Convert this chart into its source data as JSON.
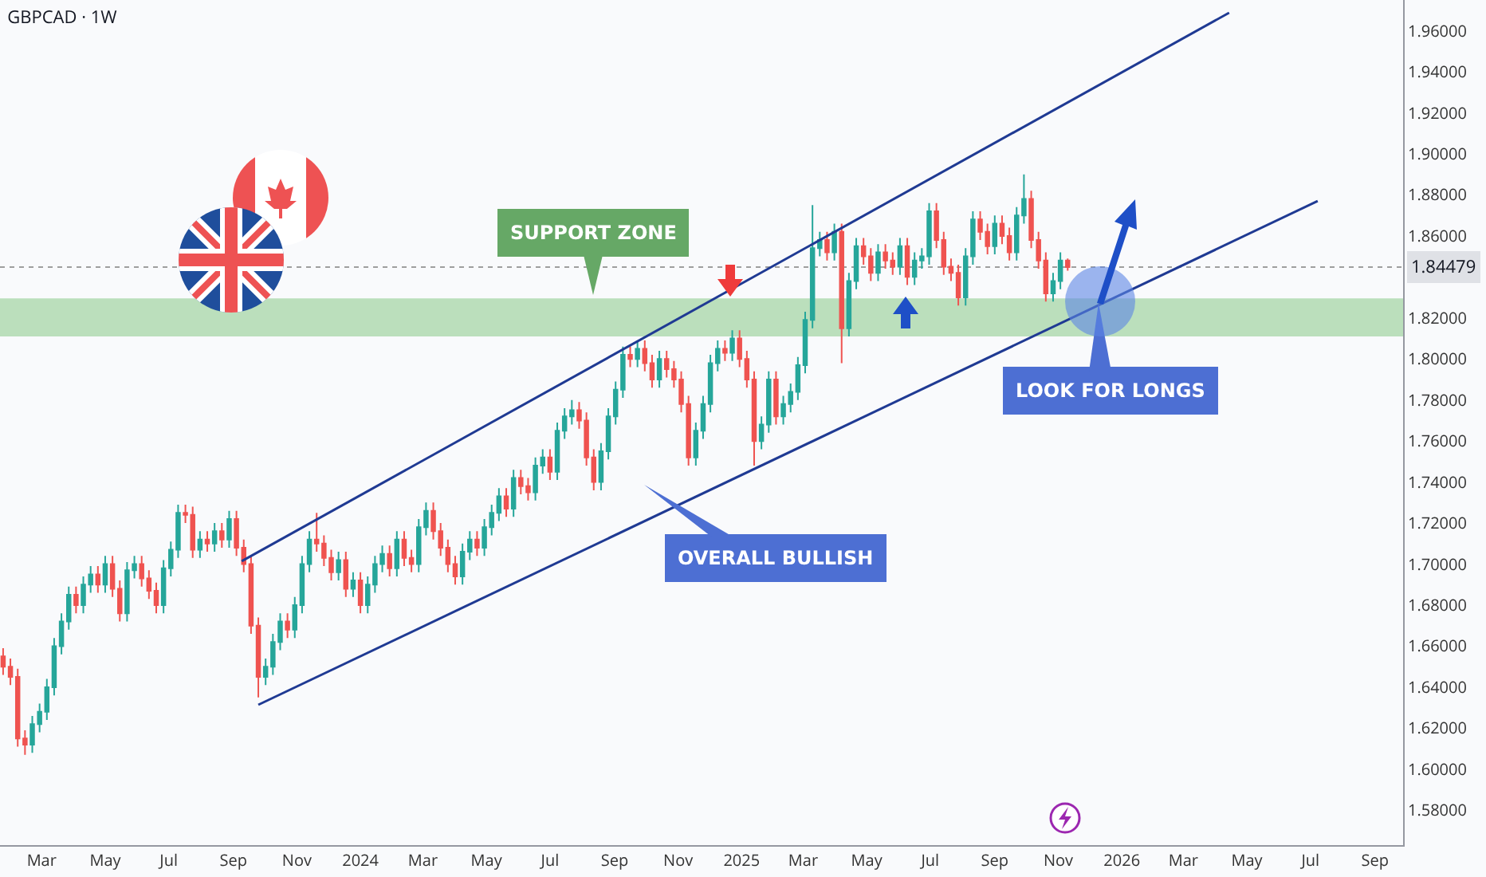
{
  "chart_data": {
    "type": "candlestick",
    "title": "GBPCAD · 1W",
    "x": [
      "2023-01-23",
      "2023-01-30",
      "2023-02-06",
      "2023-02-13",
      "2023-02-20",
      "2023-02-27",
      "2023-03-06",
      "2023-03-13",
      "2023-03-20",
      "2023-03-27",
      "2023-04-03",
      "2023-04-10",
      "2023-04-17",
      "2023-04-24",
      "2023-05-01",
      "2023-05-08",
      "2023-05-15",
      "2023-05-22",
      "2023-05-29",
      "2023-06-05",
      "2023-06-12",
      "2023-06-19",
      "2023-06-26",
      "2023-07-03",
      "2023-07-10",
      "2023-07-17",
      "2023-07-24",
      "2023-07-31",
      "2023-08-07",
      "2023-08-14",
      "2023-08-21",
      "2023-08-28",
      "2023-09-04",
      "2023-09-11",
      "2023-09-18",
      "2023-09-25",
      "2023-10-02",
      "2023-10-09",
      "2023-10-16",
      "2023-10-23",
      "2023-10-30",
      "2023-11-06",
      "2023-11-13",
      "2023-11-20",
      "2023-11-27",
      "2023-12-04",
      "2023-12-11",
      "2023-12-18",
      "2023-12-25",
      "2024-01-01",
      "2024-01-08",
      "2024-01-15",
      "2024-01-22",
      "2024-01-29",
      "2024-02-05",
      "2024-02-12",
      "2024-02-19",
      "2024-02-26",
      "2024-03-04",
      "2024-03-11",
      "2024-03-18",
      "2024-03-25",
      "2024-04-01",
      "2024-04-08",
      "2024-04-15",
      "2024-04-22",
      "2024-04-29",
      "2024-05-06",
      "2024-05-13",
      "2024-05-20",
      "2024-05-27",
      "2024-06-03",
      "2024-06-10",
      "2024-06-17",
      "2024-06-24",
      "2024-07-01",
      "2024-07-08",
      "2024-07-15",
      "2024-07-22",
      "2024-07-29",
      "2024-08-05",
      "2024-08-12",
      "2024-08-19",
      "2024-08-26",
      "2024-09-02",
      "2024-09-09",
      "2024-09-16",
      "2024-09-23",
      "2024-09-30",
      "2024-10-07",
      "2024-10-14",
      "2024-10-21",
      "2024-10-28",
      "2024-11-04",
      "2024-11-11",
      "2024-11-18",
      "2024-11-25",
      "2024-12-02",
      "2024-12-09",
      "2024-12-16",
      "2024-12-23",
      "2024-12-30",
      "2025-01-06",
      "2025-01-13",
      "2025-01-20",
      "2025-01-27",
      "2025-02-03",
      "2025-02-10",
      "2025-02-17",
      "2025-02-24",
      "2025-03-03",
      "2025-03-10",
      "2025-03-17",
      "2025-03-24",
      "2025-03-31",
      "2025-04-07",
      "2025-04-14",
      "2025-04-21",
      "2025-04-28",
      "2025-05-05",
      "2025-05-12",
      "2025-05-19",
      "2025-05-26",
      "2025-06-02",
      "2025-06-09",
      "2025-06-16",
      "2025-06-23",
      "2025-06-30",
      "2025-07-07",
      "2025-07-14",
      "2025-07-21",
      "2025-07-28",
      "2025-08-04",
      "2025-08-11",
      "2025-08-18",
      "2025-08-25",
      "2025-09-01",
      "2025-09-08",
      "2025-09-15",
      "2025-09-22",
      "2025-09-29",
      "2025-10-06",
      "2025-10-13",
      "2025-10-20",
      "2025-10-27",
      "2025-11-03",
      "2025-11-10"
    ],
    "ohlc": [
      [
        1.655,
        1.659,
        1.646,
        1.65
      ],
      [
        1.65,
        1.654,
        1.641,
        1.645
      ],
      [
        1.645,
        1.649,
        1.611,
        1.615
      ],
      [
        1.615,
        1.619,
        1.607,
        1.612
      ],
      [
        1.612,
        1.626,
        1.608,
        1.622
      ],
      [
        1.622,
        1.632,
        1.618,
        1.628
      ],
      [
        1.628,
        1.644,
        1.624,
        1.64
      ],
      [
        1.64,
        1.664,
        1.636,
        1.66
      ],
      [
        1.66,
        1.676,
        1.656,
        1.672
      ],
      [
        1.672,
        1.689,
        1.668,
        1.685
      ],
      [
        1.685,
        1.689,
        1.676,
        1.68
      ],
      [
        1.68,
        1.694,
        1.676,
        1.69
      ],
      [
        1.69,
        1.699,
        1.686,
        1.695
      ],
      [
        1.695,
        1.699,
        1.686,
        1.69
      ],
      [
        1.69,
        1.704,
        1.686,
        1.7
      ],
      [
        1.7,
        1.704,
        1.684,
        1.688
      ],
      [
        1.688,
        1.692,
        1.672,
        1.676
      ],
      [
        1.676,
        1.701,
        1.672,
        1.697
      ],
      [
        1.697,
        1.704,
        1.693,
        1.7
      ],
      [
        1.7,
        1.704,
        1.689,
        1.693
      ],
      [
        1.693,
        1.697,
        1.683,
        1.687
      ],
      [
        1.687,
        1.691,
        1.676,
        1.68
      ],
      [
        1.68,
        1.702,
        1.676,
        1.698
      ],
      [
        1.698,
        1.711,
        1.694,
        1.707
      ],
      [
        1.707,
        1.729,
        1.703,
        1.725
      ],
      [
        1.725,
        1.729,
        1.72,
        1.724
      ],
      [
        1.724,
        1.728,
        1.703,
        1.707
      ],
      [
        1.707,
        1.716,
        1.703,
        1.712
      ],
      [
        1.712,
        1.716,
        1.706,
        1.71
      ],
      [
        1.71,
        1.72,
        1.706,
        1.716
      ],
      [
        1.716,
        1.72,
        1.708,
        1.712
      ],
      [
        1.712,
        1.726,
        1.708,
        1.722
      ],
      [
        1.722,
        1.726,
        1.704,
        1.708
      ],
      [
        1.708,
        1.712,
        1.696,
        1.7
      ],
      [
        1.7,
        1.704,
        1.666,
        1.67
      ],
      [
        1.67,
        1.674,
        1.635,
        1.645
      ],
      [
        1.645,
        1.654,
        1.641,
        1.65
      ],
      [
        1.65,
        1.666,
        1.646,
        1.662
      ],
      [
        1.662,
        1.676,
        1.658,
        1.672
      ],
      [
        1.672,
        1.676,
        1.664,
        1.668
      ],
      [
        1.668,
        1.684,
        1.664,
        1.68
      ],
      [
        1.68,
        1.704,
        1.676,
        1.7
      ],
      [
        1.7,
        1.716,
        1.696,
        1.712
      ],
      [
        1.712,
        1.725,
        1.706,
        1.71
      ],
      [
        1.71,
        1.714,
        1.699,
        1.703
      ],
      [
        1.703,
        1.707,
        1.692,
        1.696
      ],
      [
        1.696,
        1.706,
        1.692,
        1.702
      ],
      [
        1.702,
        1.706,
        1.684,
        1.688
      ],
      [
        1.688,
        1.696,
        1.684,
        1.692
      ],
      [
        1.692,
        1.696,
        1.676,
        1.68
      ],
      [
        1.68,
        1.694,
        1.676,
        1.69
      ],
      [
        1.69,
        1.704,
        1.686,
        1.7
      ],
      [
        1.7,
        1.709,
        1.696,
        1.705
      ],
      [
        1.705,
        1.709,
        1.694,
        1.698
      ],
      [
        1.698,
        1.716,
        1.694,
        1.712
      ],
      [
        1.712,
        1.716,
        1.699,
        1.703
      ],
      [
        1.703,
        1.707,
        1.696,
        1.7
      ],
      [
        1.7,
        1.722,
        1.696,
        1.718
      ],
      [
        1.718,
        1.73,
        1.714,
        1.726
      ],
      [
        1.726,
        1.73,
        1.712,
        1.716
      ],
      [
        1.716,
        1.72,
        1.704,
        1.708
      ],
      [
        1.708,
        1.712,
        1.696,
        1.7
      ],
      [
        1.7,
        1.704,
        1.69,
        1.694
      ],
      [
        1.694,
        1.71,
        1.69,
        1.706
      ],
      [
        1.706,
        1.716,
        1.702,
        1.712
      ],
      [
        1.712,
        1.716,
        1.704,
        1.708
      ],
      [
        1.708,
        1.722,
        1.704,
        1.718
      ],
      [
        1.718,
        1.729,
        1.714,
        1.725
      ],
      [
        1.725,
        1.737,
        1.721,
        1.733
      ],
      [
        1.733,
        1.737,
        1.723,
        1.727
      ],
      [
        1.727,
        1.746,
        1.723,
        1.742
      ],
      [
        1.742,
        1.746,
        1.734,
        1.738
      ],
      [
        1.738,
        1.742,
        1.731,
        1.735
      ],
      [
        1.735,
        1.752,
        1.731,
        1.748
      ],
      [
        1.748,
        1.756,
        1.744,
        1.752
      ],
      [
        1.752,
        1.756,
        1.741,
        1.745
      ],
      [
        1.745,
        1.769,
        1.741,
        1.765
      ],
      [
        1.765,
        1.776,
        1.761,
        1.772
      ],
      [
        1.772,
        1.78,
        1.768,
        1.775
      ],
      [
        1.775,
        1.779,
        1.766,
        1.77
      ],
      [
        1.77,
        1.774,
        1.748,
        1.752
      ],
      [
        1.752,
        1.756,
        1.736,
        1.74
      ],
      [
        1.74,
        1.759,
        1.736,
        1.755
      ],
      [
        1.755,
        1.776,
        1.751,
        1.772
      ],
      [
        1.772,
        1.789,
        1.768,
        1.785
      ],
      [
        1.785,
        1.806,
        1.781,
        1.802
      ],
      [
        1.802,
        1.806,
        1.796,
        1.8
      ],
      [
        1.8,
        1.809,
        1.796,
        1.805
      ],
      [
        1.805,
        1.809,
        1.794,
        1.798
      ],
      [
        1.798,
        1.802,
        1.786,
        1.79
      ],
      [
        1.79,
        1.804,
        1.786,
        1.8
      ],
      [
        1.8,
        1.804,
        1.791,
        1.795
      ],
      [
        1.795,
        1.799,
        1.786,
        1.79
      ],
      [
        1.79,
        1.794,
        1.774,
        1.778
      ],
      [
        1.778,
        1.782,
        1.748,
        1.752
      ],
      [
        1.752,
        1.769,
        1.748,
        1.765
      ],
      [
        1.765,
        1.782,
        1.761,
        1.778
      ],
      [
        1.778,
        1.802,
        1.774,
        1.798
      ],
      [
        1.798,
        1.809,
        1.794,
        1.805
      ],
      [
        1.805,
        1.809,
        1.799,
        1.803
      ],
      [
        1.803,
        1.814,
        1.799,
        1.81
      ],
      [
        1.81,
        1.814,
        1.796,
        1.8
      ],
      [
        1.8,
        1.804,
        1.786,
        1.79
      ],
      [
        1.79,
        1.794,
        1.748,
        1.76
      ],
      [
        1.76,
        1.772,
        1.756,
        1.768
      ],
      [
        1.768,
        1.794,
        1.764,
        1.79
      ],
      [
        1.79,
        1.794,
        1.768,
        1.772
      ],
      [
        1.772,
        1.782,
        1.768,
        1.778
      ],
      [
        1.778,
        1.788,
        1.774,
        1.784
      ],
      [
        1.784,
        1.801,
        1.78,
        1.797
      ],
      [
        1.797,
        1.823,
        1.793,
        1.819
      ],
      [
        1.819,
        1.875,
        1.815,
        1.854
      ],
      [
        1.854,
        1.862,
        1.85,
        1.858
      ],
      [
        1.858,
        1.862,
        1.848,
        1.852
      ],
      [
        1.852,
        1.866,
        1.848,
        1.862
      ],
      [
        1.862,
        1.866,
        1.798,
        1.815
      ],
      [
        1.815,
        1.842,
        1.811,
        1.838
      ],
      [
        1.838,
        1.859,
        1.834,
        1.855
      ],
      [
        1.855,
        1.859,
        1.846,
        1.85
      ],
      [
        1.85,
        1.854,
        1.838,
        1.842
      ],
      [
        1.842,
        1.856,
        1.838,
        1.852
      ],
      [
        1.852,
        1.856,
        1.844,
        1.848
      ],
      [
        1.848,
        1.852,
        1.841,
        1.845
      ],
      [
        1.845,
        1.859,
        1.841,
        1.855
      ],
      [
        1.855,
        1.859,
        1.836,
        1.84
      ],
      [
        1.84,
        1.852,
        1.836,
        1.848
      ],
      [
        1.848,
        1.854,
        1.844,
        1.85
      ],
      [
        1.85,
        1.876,
        1.846,
        1.872
      ],
      [
        1.872,
        1.876,
        1.854,
        1.858
      ],
      [
        1.858,
        1.862,
        1.841,
        1.845
      ],
      [
        1.845,
        1.849,
        1.838,
        1.842
      ],
      [
        1.842,
        1.846,
        1.826,
        1.83
      ],
      [
        1.83,
        1.854,
        1.826,
        1.85
      ],
      [
        1.85,
        1.872,
        1.846,
        1.868
      ],
      [
        1.868,
        1.872,
        1.858,
        1.862
      ],
      [
        1.862,
        1.866,
        1.851,
        1.855
      ],
      [
        1.855,
        1.87,
        1.851,
        1.866
      ],
      [
        1.866,
        1.87,
        1.856,
        1.86
      ],
      [
        1.86,
        1.864,
        1.848,
        1.852
      ],
      [
        1.852,
        1.874,
        1.848,
        1.87
      ],
      [
        1.87,
        1.89,
        1.866,
        1.878
      ],
      [
        1.878,
        1.882,
        1.854,
        1.858
      ],
      [
        1.858,
        1.862,
        1.844,
        1.848
      ],
      [
        1.848,
        1.852,
        1.828,
        1.832
      ],
      [
        1.832,
        1.842,
        1.828,
        1.838
      ],
      [
        1.838,
        1.852,
        1.834,
        1.848
      ],
      [
        1.848,
        1.849,
        1.843,
        1.84479
      ]
    ],
    "series": [
      {
        "type": "line",
        "color": "#1f3a93",
        "x": [
          "2023-09-09",
          "2026-04-14"
        ],
        "values": [
          1.7014,
          1.9688
        ]
      },
      {
        "type": "line",
        "color": "#1f3a93",
        "x": [
          "2023-09-25",
          "2026-07-08"
        ],
        "values": [
          1.6314,
          1.877
        ]
      }
    ],
    "xlim": [
      "2023-01-20",
      "2026-09-28"
    ],
    "ylim": [
      1.563,
      1.975
    ],
    "xticks": [
      {
        "value": "2023-03-01",
        "label": "Mar"
      },
      {
        "value": "2023-05-01",
        "label": "May"
      },
      {
        "value": "2023-07-01",
        "label": "Jul"
      },
      {
        "value": "2023-09-01",
        "label": "Sep"
      },
      {
        "value": "2023-11-01",
        "label": "Nov"
      },
      {
        "value": "2024-01-01",
        "label": "2024"
      },
      {
        "value": "2024-03-01",
        "label": "Mar"
      },
      {
        "value": "2024-05-01",
        "label": "May"
      },
      {
        "value": "2024-07-01",
        "label": "Jul"
      },
      {
        "value": "2024-09-01",
        "label": "Sep"
      },
      {
        "value": "2024-11-01",
        "label": "Nov"
      },
      {
        "value": "2025-01-01",
        "label": "2025"
      },
      {
        "value": "2025-03-01",
        "label": "Mar"
      },
      {
        "value": "2025-05-01",
        "label": "May"
      },
      {
        "value": "2025-07-01",
        "label": "Jul"
      },
      {
        "value": "2025-09-01",
        "label": "Sep"
      },
      {
        "value": "2025-11-01",
        "label": "Nov"
      },
      {
        "value": "2026-01-01",
        "label": "2026"
      },
      {
        "value": "2026-03-01",
        "label": "Mar"
      },
      {
        "value": "2026-05-01",
        "label": "May"
      },
      {
        "value": "2026-07-01",
        "label": "Jul"
      },
      {
        "value": "2026-09-01",
        "label": "Sep"
      }
    ],
    "yticks": [
      {
        "value": 1.58,
        "label": "1.58000"
      },
      {
        "value": 1.6,
        "label": "1.60000"
      },
      {
        "value": 1.62,
        "label": "1.62000"
      },
      {
        "value": 1.64,
        "label": "1.64000"
      },
      {
        "value": 1.66,
        "label": "1.66000"
      },
      {
        "value": 1.68,
        "label": "1.68000"
      },
      {
        "value": 1.7,
        "label": "1.70000"
      },
      {
        "value": 1.72,
        "label": "1.72000"
      },
      {
        "value": 1.74,
        "label": "1.74000"
      },
      {
        "value": 1.76,
        "label": "1.76000"
      },
      {
        "value": 1.78,
        "label": "1.78000"
      },
      {
        "value": 1.8,
        "label": "1.80000"
      },
      {
        "value": 1.82,
        "label": "1.82000"
      },
      {
        "value": 1.86,
        "label": "1.86000"
      },
      {
        "value": 1.88,
        "label": "1.88000"
      },
      {
        "value": 1.9,
        "label": "1.90000"
      },
      {
        "value": 1.92,
        "label": "1.92000"
      },
      {
        "value": 1.94,
        "label": "1.94000"
      },
      {
        "value": 1.96,
        "label": "1.96000"
      }
    ],
    "ref_lines": [
      {
        "axis": "y",
        "value": 1.84479,
        "label": "1.84479",
        "color": "#9e9e9e",
        "line_style": "dotted"
      }
    ],
    "bands": [
      {
        "axis": "y",
        "from": 1.811,
        "to": 1.8295,
        "color": "#a5d6a7"
      }
    ],
    "annotations": [
      "SUPPORT ZONE",
      "OVERALL BULLISH",
      "LOOK FOR LONGS"
    ],
    "grid": false,
    "marker": "none",
    "line_style": "solid"
  }
}
